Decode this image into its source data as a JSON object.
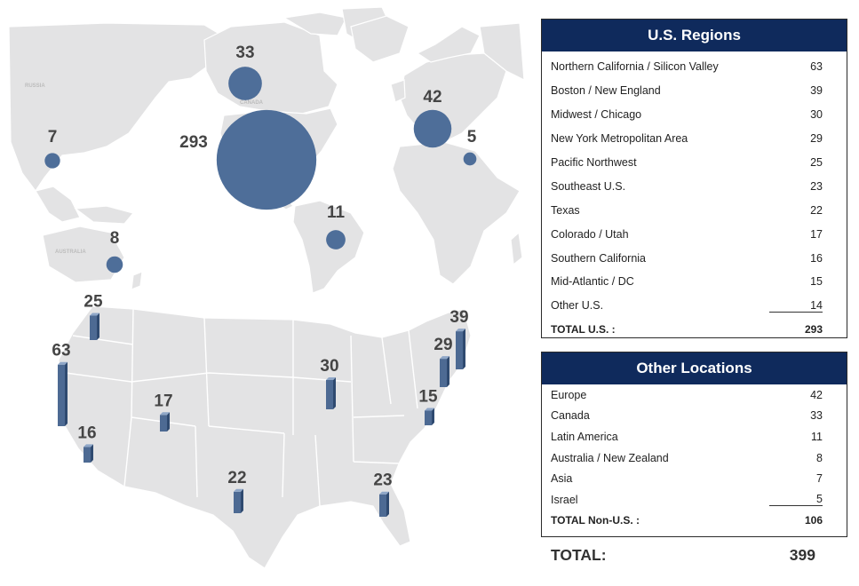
{
  "world_bubbles": [
    {
      "label": "33",
      "value": 33,
      "region": "Canada"
    },
    {
      "label": "293",
      "value": 293,
      "region": "U.S."
    },
    {
      "label": "42",
      "value": 42,
      "region": "Europe"
    },
    {
      "label": "5",
      "value": 5,
      "region": "Israel"
    },
    {
      "label": "7",
      "value": 7,
      "region": "Asia"
    },
    {
      "label": "11",
      "value": 11,
      "region": "Latin America"
    },
    {
      "label": "8",
      "value": 8,
      "region": "Australia / New Zealand"
    }
  ],
  "map_region_labels": [
    "RUSSIA",
    "AUSTRALIA",
    "CANADA"
  ],
  "us_bars": [
    {
      "label": "25",
      "value": 25,
      "region": "Pacific Northwest"
    },
    {
      "label": "63",
      "value": 63,
      "region": "Northern California / Silicon Valley"
    },
    {
      "label": "16",
      "value": 16,
      "region": "Southern California"
    },
    {
      "label": "17",
      "value": 17,
      "region": "Colorado / Utah"
    },
    {
      "label": "22",
      "value": 22,
      "region": "Texas"
    },
    {
      "label": "30",
      "value": 30,
      "region": "Midwest / Chicago"
    },
    {
      "label": "23",
      "value": 23,
      "region": "Southeast U.S."
    },
    {
      "label": "15",
      "value": 15,
      "region": "Mid-Atlantic / DC"
    },
    {
      "label": "29",
      "value": 29,
      "region": "New York Metropolitan Area"
    },
    {
      "label": "39",
      "value": 39,
      "region": "Boston / New England"
    }
  ],
  "us_regions": {
    "title": "U.S. Regions",
    "rows": [
      {
        "name": "Northern California / Silicon Valley",
        "value": "63"
      },
      {
        "name": "Boston / New England",
        "value": "39"
      },
      {
        "name": "Midwest / Chicago",
        "value": "30"
      },
      {
        "name": "New York Metropolitan Area",
        "value": "29"
      },
      {
        "name": "Pacific Northwest",
        "value": "25"
      },
      {
        "name": "Southeast U.S.",
        "value": "23"
      },
      {
        "name": "Texas",
        "value": "22"
      },
      {
        "name": "Colorado / Utah",
        "value": "17"
      },
      {
        "name": "Southern California",
        "value": "16"
      },
      {
        "name": "Mid-Atlantic / DC",
        "value": "15"
      },
      {
        "name": "Other U.S.",
        "value": "14"
      }
    ],
    "total_label": "TOTAL U.S. :",
    "total_value": "293"
  },
  "other_locations": {
    "title": "Other Locations",
    "rows": [
      {
        "name": "Europe",
        "value": "42"
      },
      {
        "name": "Canada",
        "value": "33"
      },
      {
        "name": "Latin America",
        "value": "11"
      },
      {
        "name": "Australia / New Zealand",
        "value": "8"
      },
      {
        "name": "Asia",
        "value": "7"
      },
      {
        "name": "Israel",
        "value": "5"
      }
    ],
    "total_label": "TOTAL Non-U.S. :",
    "total_value": "106"
  },
  "grand_total": {
    "label": "TOTAL:",
    "value": "399"
  },
  "colors": {
    "marker": "#4e6e99",
    "header": "#0f2a5c",
    "land": "#e3e3e4"
  }
}
